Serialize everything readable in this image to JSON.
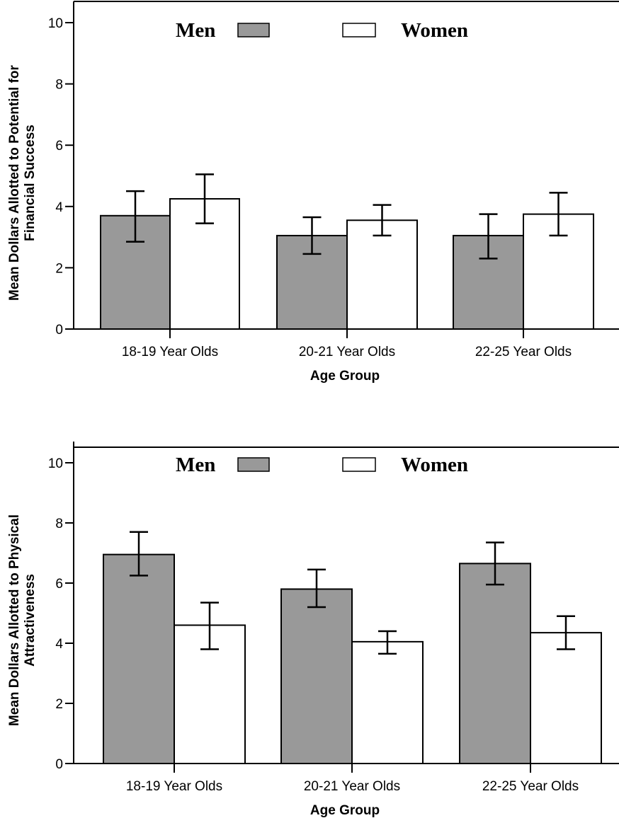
{
  "colors": {
    "men": "#999999",
    "women": "#ffffff",
    "stroke": "#000000"
  },
  "legend": {
    "men": "Men",
    "women": "Women"
  },
  "chart_data": [
    {
      "type": "bar",
      "categories": [
        "18-19 Year Olds",
        "20-21 Year Olds",
        "22-25 Year Olds"
      ],
      "xlabel": "Age Group",
      "ylabel_line1": "Mean Dollars Allotted to Potential for",
      "ylabel_line2": "Financial Success",
      "ylim": [
        0,
        10
      ],
      "yticks": [
        "0",
        "2",
        "4",
        "6",
        "8",
        "10"
      ],
      "legend_position": "top",
      "series": [
        {
          "name": "Men",
          "values": [
            3.7,
            3.05,
            3.05
          ],
          "err_low": [
            2.85,
            2.45,
            2.3
          ],
          "err_high": [
            4.5,
            3.65,
            3.75
          ]
        },
        {
          "name": "Women",
          "values": [
            4.25,
            3.55,
            3.75
          ],
          "err_low": [
            3.45,
            3.05,
            3.05
          ],
          "err_high": [
            5.05,
            4.05,
            4.45
          ]
        }
      ]
    },
    {
      "type": "bar",
      "categories": [
        "18-19 Year Olds",
        "20-21 Year Olds",
        "22-25 Year Olds"
      ],
      "xlabel": "Age Group",
      "ylabel_line1": "Mean Dollars Allotted to Physical",
      "ylabel_line2": "Attractiveness",
      "ylim": [
        0,
        10
      ],
      "yticks": [
        "0",
        "2",
        "4",
        "6",
        "8",
        "10"
      ],
      "legend_position": "top",
      "series": [
        {
          "name": "Men",
          "values": [
            6.95,
            5.8,
            6.65
          ],
          "err_low": [
            6.25,
            5.2,
            5.95
          ],
          "err_high": [
            7.7,
            6.45,
            7.35
          ]
        },
        {
          "name": "Women",
          "values": [
            4.6,
            4.05,
            4.35
          ],
          "err_low": [
            3.8,
            3.65,
            3.8
          ],
          "err_high": [
            5.35,
            4.4,
            4.9
          ]
        }
      ]
    }
  ]
}
